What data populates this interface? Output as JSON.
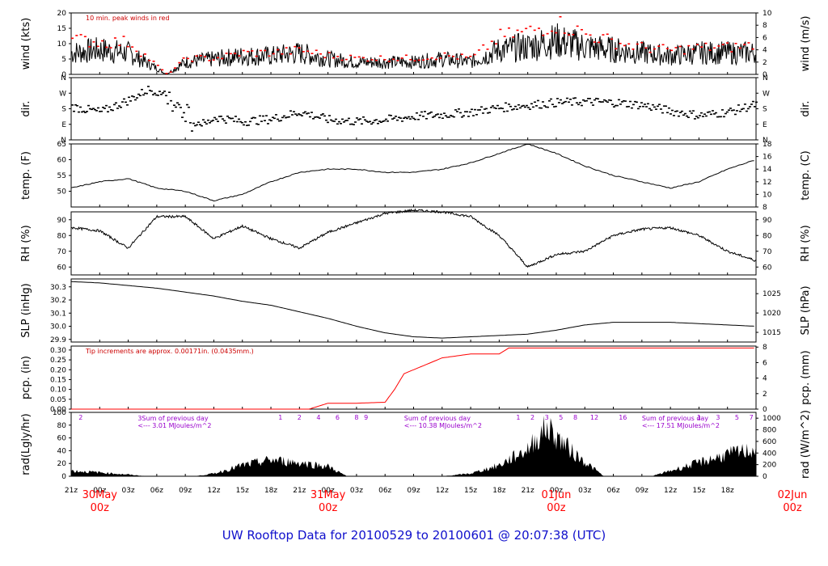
{
  "title": "UW Rooftop Data for 20100529  to  20100601 @ 20:07:38  (UTC)",
  "colors": {
    "line": "#000000",
    "peak": "#ff0000",
    "precip": "#ff0000",
    "purple": "#9900cc",
    "title": "#1010cc",
    "date": "#ff0000"
  },
  "x_axis": {
    "hour_labels": [
      "21z",
      "00z",
      "03z",
      "06z",
      "09z",
      "12z",
      "15z",
      "18z",
      "21z",
      "00z",
      "03z",
      "06z",
      "09z",
      "12z",
      "15z",
      "18z",
      "21z",
      "00z",
      "03z",
      "06z",
      "09z",
      "12z",
      "15z",
      "18z"
    ],
    "date_labels": [
      {
        "date": "30May",
        "hour": "00z"
      },
      {
        "date": "31May",
        "hour": "00z"
      },
      {
        "date": "01Jun",
        "hour": "00z"
      },
      {
        "date": "02Jun",
        "hour": "00z"
      }
    ]
  },
  "chart_data": [
    {
      "id": "wind",
      "type": "line",
      "ylabel": "wind (kts)",
      "ylabel_right": "wind (m/s)",
      "ylim": [
        0,
        20
      ],
      "yticks": [
        0,
        5,
        10,
        15,
        20
      ],
      "ylim_right": [
        0,
        10
      ],
      "yticks_right": [
        0,
        2,
        4,
        6,
        8,
        10
      ],
      "annotation": "10 min. peak winds in red",
      "series": [
        {
          "name": "wind",
          "x": [
            -3,
            0,
            3,
            6,
            7,
            9,
            12,
            15,
            18,
            21,
            24,
            27,
            30,
            33,
            36,
            39,
            42,
            45,
            48,
            51,
            54,
            57,
            60,
            63,
            66,
            69
          ],
          "values": [
            7,
            8,
            7,
            2,
            0,
            4,
            5,
            6,
            6,
            7,
            5,
            4,
            4,
            4,
            5,
            4,
            8,
            9,
            11,
            9,
            8,
            7,
            6,
            7,
            7,
            7
          ]
        },
        {
          "name": "10 min. peak winds",
          "x": [
            -3,
            0,
            3,
            6,
            7,
            9,
            12,
            15,
            18,
            21,
            24,
            27,
            30,
            33,
            36,
            39,
            42,
            45,
            48,
            51,
            54,
            57,
            60,
            63,
            66,
            69
          ],
          "values": [
            13,
            12,
            12,
            3,
            0,
            6,
            6,
            8,
            8,
            9,
            7,
            6,
            6,
            6,
            7,
            6,
            14,
            16,
            19,
            15,
            12,
            10,
            9,
            10,
            10,
            11
          ]
        }
      ]
    },
    {
      "id": "dir",
      "type": "scatter",
      "ylabel": "dir.",
      "ylabel_right": "dir.",
      "ylim": [
        0,
        360
      ],
      "yticks": [
        "N",
        "E",
        "S",
        "W",
        "N"
      ],
      "series": [
        {
          "name": "direction",
          "x": [
            -3,
            0,
            3,
            5,
            7,
            9,
            11,
            12,
            15,
            18,
            21,
            24,
            27,
            30,
            33,
            36,
            39,
            42,
            45,
            48,
            51,
            54,
            57,
            60,
            63,
            66,
            69
          ],
          "values": [
            190,
            160,
            230,
            290,
            270,
            120,
            90,
            130,
            105,
            120,
            160,
            115,
            105,
            115,
            135,
            145,
            160,
            185,
            200,
            215,
            220,
            215,
            200,
            165,
            140,
            160,
            205
          ]
        }
      ]
    },
    {
      "id": "temp",
      "type": "line",
      "ylabel": "temp. (F)",
      "ylabel_right": "temp. (C)",
      "ylim": [
        45,
        65
      ],
      "yticks": [
        50,
        55,
        60,
        65
      ],
      "ylim_right": [
        8,
        18
      ],
      "yticks_right": [
        8,
        10,
        12,
        14,
        16,
        18
      ],
      "series": [
        {
          "name": "temperature",
          "x": [
            -3,
            0,
            3,
            6,
            9,
            12,
            15,
            18,
            21,
            24,
            27,
            30,
            33,
            36,
            39,
            42,
            45,
            48,
            51,
            54,
            57,
            60,
            63,
            66,
            69
          ],
          "values": [
            51,
            53,
            54,
            51,
            50,
            47,
            49,
            53,
            56,
            57,
            57,
            56,
            56,
            57,
            59,
            62,
            65,
            62,
            58,
            55,
            53,
            51,
            53,
            57,
            60
          ]
        }
      ]
    },
    {
      "id": "rh",
      "type": "line",
      "ylabel": "RH (%)",
      "ylabel_right": "RH (%)",
      "ylim": [
        55,
        95
      ],
      "yticks": [
        60,
        70,
        80,
        90
      ],
      "yticks_right": [
        60,
        70,
        80,
        90
      ],
      "series": [
        {
          "name": "RH",
          "x": [
            -3,
            0,
            3,
            4.5,
            6,
            9,
            12,
            15,
            18,
            21,
            24,
            27,
            30,
            33,
            36,
            39,
            42,
            45,
            48,
            51,
            54,
            57,
            60,
            63,
            66,
            69
          ],
          "values": [
            85,
            83,
            72,
            82,
            92,
            92,
            78,
            86,
            78,
            72,
            82,
            88,
            94,
            96,
            95,
            92,
            80,
            60,
            68,
            70,
            80,
            84,
            85,
            80,
            70,
            64
          ]
        }
      ]
    },
    {
      "id": "slp",
      "type": "line",
      "ylabel": "SLP (inHg)",
      "ylabel_right": "SLP (hPa)",
      "ylim": [
        29.88,
        30.36
      ],
      "yticks": [
        29.9,
        30.0,
        30.1,
        30.2,
        30.3
      ],
      "yticks_right": [
        1015,
        1020,
        1025
      ],
      "series": [
        {
          "name": "pressure",
          "x": [
            -3,
            0,
            3,
            6,
            9,
            12,
            15,
            18,
            21,
            24,
            27,
            30,
            33,
            36,
            39,
            42,
            45,
            48,
            51,
            54,
            57,
            60,
            63,
            66,
            69
          ],
          "values": [
            30.34,
            30.33,
            30.31,
            30.29,
            30.26,
            30.23,
            30.19,
            30.16,
            30.11,
            30.06,
            30.0,
            29.95,
            29.92,
            29.91,
            29.92,
            29.93,
            29.94,
            29.97,
            30.01,
            30.03,
            30.03,
            30.03,
            30.02,
            30.01,
            30.0
          ]
        }
      ]
    },
    {
      "id": "pcp",
      "type": "line",
      "ylabel": "pcp. (in)",
      "ylabel_right": "pcp. (mm)",
      "ylim": [
        0,
        0.32
      ],
      "yticks": [
        0,
        0.05,
        0.1,
        0.15,
        0.2,
        0.25,
        0.3
      ],
      "yticks_right": [
        0,
        2,
        4,
        6,
        8
      ],
      "annotation": "Tip increments are approx. 0.00171in. (0.0435mm.)",
      "series": [
        {
          "name": "precipitation",
          "x": [
            -3,
            22,
            24,
            27,
            30,
            31,
            32,
            33,
            36,
            39,
            42,
            43,
            69
          ],
          "values": [
            0,
            0,
            0.03,
            0.03,
            0.035,
            0.1,
            0.18,
            0.2,
            0.26,
            0.28,
            0.28,
            0.31,
            0.31
          ]
        }
      ]
    },
    {
      "id": "rad",
      "type": "area",
      "ylabel": "rad(Lgly/hr)",
      "ylabel_right": "rad (W/m^2)",
      "ylim": [
        0,
        100
      ],
      "yticks": [
        0,
        20,
        40,
        60,
        80,
        100
      ],
      "yticks_right": [
        0,
        200,
        400,
        600,
        800,
        1000
      ],
      "annotations": [
        {
          "text": "3Sum of previous day",
          "x": 4
        },
        {
          "text": "<--- 3.01 MJoules/m^2",
          "x": 4
        },
        {
          "text": "Sum of previous day",
          "x": 32
        },
        {
          "text": "<--- 10.38 MJoules/m^2",
          "x": 32
        },
        {
          "text": "Sum of previous day",
          "x": 57
        },
        {
          "text": "<--- 17.51 MJoules/m^2",
          "x": 57
        }
      ],
      "hour_marks": [
        "2",
        "1",
        "2",
        "4",
        "6",
        "8",
        "9",
        "1",
        "2",
        "3",
        "5",
        "8",
        "12",
        "16",
        "1",
        "3",
        "5",
        "7"
      ],
      "series": [
        {
          "name": "radiation",
          "x": [
            -3,
            0,
            3,
            5,
            10,
            12,
            15,
            18,
            21,
            24,
            26,
            36,
            39,
            42,
            45,
            47,
            50,
            53,
            58,
            60,
            63,
            66,
            69
          ],
          "values": [
            10,
            7,
            3,
            0,
            0,
            5,
            20,
            30,
            25,
            18,
            0,
            0,
            5,
            20,
            50,
            90,
            40,
            0,
            0,
            10,
            25,
            40,
            50
          ]
        }
      ]
    }
  ]
}
